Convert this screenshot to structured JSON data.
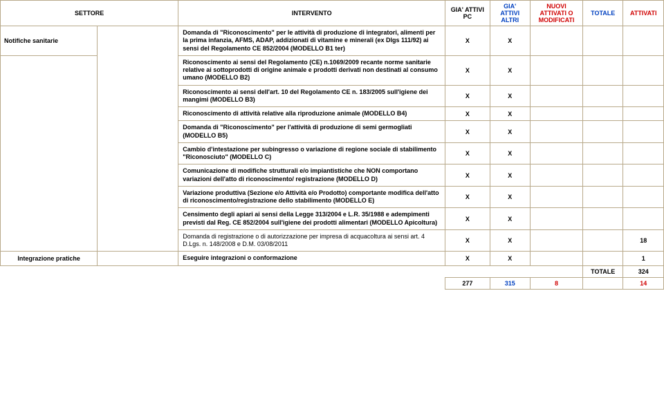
{
  "header": {
    "settore": "SETTORE",
    "intervento": "INTERVENTO",
    "gia_pc": "GIA' ATTIVI PC",
    "gia_altri": "GIA' ATTIVI ALTRI",
    "nuovi": "NUOVI ATTIVATI O MODIFICATI",
    "totale": "TOTALE",
    "attivati": "ATTIVATI"
  },
  "sector1": "Notifiche sanitarie",
  "rows": [
    {
      "text": "Domanda di \"Riconoscimento\" per le attività di produzione di integratori, alimenti per la prima infanzia, AFMS, ADAP, addizionati di vitamine e minerali (ex Dlgs 111/92) ai sensi del Regolamento CE 852/2004 (MODELLO B1 ter)",
      "pc": "X",
      "altri": "X",
      "nuovi": "",
      "tot": "",
      "att": ""
    },
    {
      "text": "Riconoscimento ai sensi del Regolamento (CE) n.1069/2009 recante norme sanitarie relative ai sottoprodotti di origine animale e prodotti derivati non destinati al consumo umano (MODELLO B2)",
      "pc": "X",
      "altri": "X",
      "nuovi": "",
      "tot": "",
      "att": ""
    },
    {
      "text": "Riconoscimento ai sensi dell'art. 10 del Regolamento CE n. 183/2005 sull'igiene dei mangimi (MODELLO B3)",
      "pc": "X",
      "altri": "X",
      "nuovi": "",
      "tot": "",
      "att": ""
    },
    {
      "text": "Riconoscimento di attività relative alla riproduzione animale (MODELLO B4)",
      "pc": "X",
      "altri": "X",
      "nuovi": "",
      "tot": "",
      "att": ""
    },
    {
      "text": "Domanda di \"Riconoscimento\" per l'attività di produzione di semi germogliati (MODELLO B5)",
      "pc": "X",
      "altri": "X",
      "nuovi": "",
      "tot": "",
      "att": ""
    },
    {
      "text": "Cambio d'intestazione per subingresso o variazione di regione sociale di stabilimento \"Riconosciuto\" (MODELLO C)",
      "pc": "X",
      "altri": "X",
      "nuovi": "",
      "tot": "",
      "att": ""
    },
    {
      "text": "Comunicazione di modifiche strutturali e/o impiantistiche che NON comportano variazioni dell'atto di riconoscimento/ registrazione (MODELLO D)",
      "pc": "X",
      "altri": "X",
      "nuovi": "",
      "tot": "",
      "att": ""
    },
    {
      "text": "Variazione produttiva (Sezione e/o Attività e/o Prodotto) comportante modifica dell'atto di riconoscimento/registrazione dello stabilimento (MODELLO E)",
      "pc": "X",
      "altri": "X",
      "nuovi": "",
      "tot": "",
      "att": ""
    },
    {
      "text": "Censimento degli apiari ai sensi della Legge 313/2004 e L.R. 35/1988 e adempimenti previsti dal Reg. CE 852/2004 sull'igiene dei prodotti alimentari (MODELLO Apicoltura)",
      "pc": "X",
      "altri": "X",
      "nuovi": "",
      "tot": "",
      "att": ""
    },
    {
      "text": "Domanda di registrazione o di autorizzazione per impresa di acquacoltura ai sensi art. 4 D.Lgs. n. 148/2008 e D.M. 03/08/2011",
      "pc": "X",
      "altri": "X",
      "nuovi": "",
      "tot": "",
      "att": "18"
    }
  ],
  "sector2": "Integrazione pratiche",
  "row2": {
    "text": "Eseguire integrazioni o conformazione",
    "pc": "X",
    "altri": "X",
    "nuovi": "",
    "tot": "",
    "att": "1"
  },
  "totale_label": "TOTALE",
  "totale_val": "324",
  "footer": {
    "pc": "277",
    "altri": "315",
    "nuovi": "8",
    "tot": "",
    "att": "14"
  }
}
